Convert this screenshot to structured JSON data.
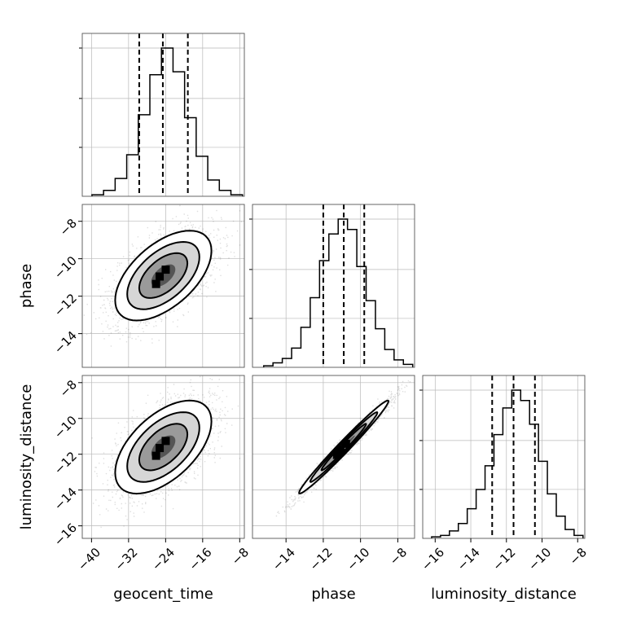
{
  "chart_data": {
    "type": "corner",
    "parameters": [
      "geocent_time",
      "phase",
      "luminosity_distance"
    ],
    "axes": {
      "geocent_time": {
        "label": "geocent_time",
        "range": [
          -42,
          -7
        ],
        "ticks": [
          -40,
          -32,
          -24,
          -16,
          -8
        ],
        "tick_labels": [
          "−40",
          "−32",
          "−24",
          "−16",
          "−8"
        ]
      },
      "phase": {
        "label": "phase",
        "range": [
          -15.8,
          -7.1
        ],
        "ticks": [
          -14,
          -12,
          -10,
          -8
        ],
        "tick_labels": [
          "−14",
          "−12",
          "−10",
          "−8"
        ]
      },
      "luminosity_distance": {
        "label": "luminosity_distance",
        "range": [
          -16.7,
          -7.6
        ],
        "ticks": [
          -16,
          -14,
          -12,
          -10,
          -8
        ],
        "tick_labels": [
          "−16",
          "−14",
          "−12",
          "−10",
          "−8"
        ]
      }
    },
    "marginals": [
      {
        "parameter": "geocent_time",
        "bins": [
          -39.9,
          -37.4,
          -34.9,
          -32.4,
          -29.9,
          -27.4,
          -24.9,
          -22.4,
          -19.9,
          -17.4,
          -14.9,
          -12.4,
          -9.9
        ],
        "counts": [
          0.01,
          0.04,
          0.12,
          0.28,
          0.55,
          0.82,
          1.0,
          0.84,
          0.53,
          0.27,
          0.11,
          0.04,
          0.01
        ],
        "quantiles": [
          -29.7,
          -24.6,
          -19.2
        ]
      },
      {
        "parameter": "phase",
        "bins": [
          -15.2,
          -14.7,
          -14.2,
          -13.7,
          -13.2,
          -12.7,
          -12.2,
          -11.7,
          -11.2,
          -10.7,
          -10.2,
          -9.7,
          -9.2,
          -8.7,
          -8.2,
          -7.7
        ],
        "counts": [
          0.01,
          0.03,
          0.06,
          0.13,
          0.27,
          0.47,
          0.72,
          0.9,
          1.0,
          0.93,
          0.68,
          0.45,
          0.26,
          0.12,
          0.05,
          0.02
        ],
        "quantiles": [
          -12.0,
          -10.9,
          -9.8
        ]
      },
      {
        "parameter": "luminosity_distance",
        "bins": [
          -16.2,
          -15.7,
          -15.2,
          -14.7,
          -14.2,
          -13.7,
          -13.2,
          -12.7,
          -12.2,
          -11.7,
          -11.2,
          -10.7,
          -10.2,
          -9.7,
          -9.2,
          -8.7,
          -8.2
        ],
        "counts": [
          0.01,
          0.02,
          0.05,
          0.1,
          0.2,
          0.33,
          0.49,
          0.7,
          0.88,
          1.0,
          0.93,
          0.77,
          0.52,
          0.3,
          0.15,
          0.06,
          0.02
        ],
        "quantiles": [
          -12.8,
          -11.6,
          -10.4
        ]
      }
    ],
    "joints": [
      {
        "x": "geocent_time",
        "y": "phase",
        "mean": [
          -24.5,
          -10.9
        ],
        "sd": [
          5.2,
          1.2
        ],
        "rho": 0.55
      },
      {
        "x": "geocent_time",
        "y": "luminosity_distance",
        "mean": [
          -24.5,
          -11.6
        ],
        "sd": [
          5.2,
          1.3
        ],
        "rho": 0.55
      },
      {
        "x": "phase",
        "y": "luminosity_distance",
        "mean": [
          -10.9,
          -11.6
        ],
        "sd": [
          1.2,
          1.3
        ],
        "rho": 0.985
      }
    ],
    "contour_levels_sigma": [
      0.5,
      1.0,
      1.5,
      2.0
    ],
    "grid": true
  }
}
